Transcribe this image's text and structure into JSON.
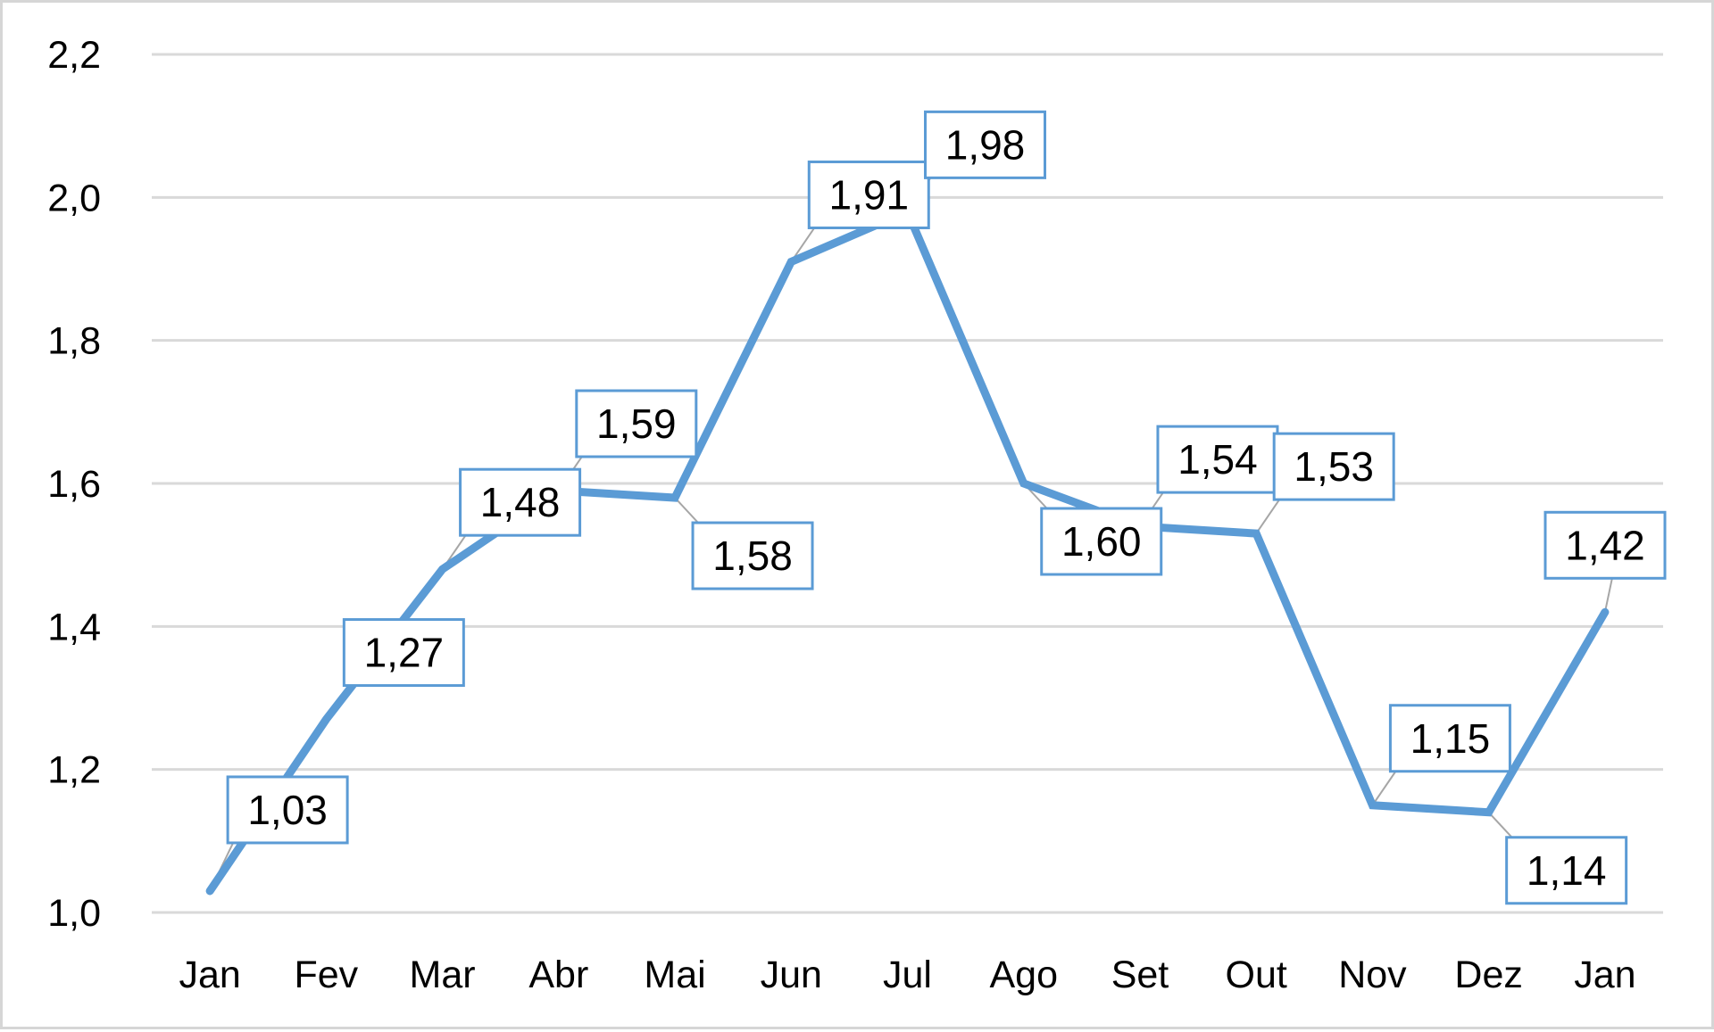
{
  "chart_data": {
    "type": "line",
    "title": "",
    "xlabel": "",
    "ylabel": "",
    "categories": [
      "Jan",
      "Fev",
      "Mar",
      "Abr",
      "Mai",
      "Jun",
      "Jul",
      "Ago",
      "Set",
      "Out",
      "Nov",
      "Dez",
      "Jan"
    ],
    "series": [
      {
        "values": [
          1.03,
          1.27,
          1.48,
          1.59,
          1.58,
          1.91,
          1.98,
          1.6,
          1.54,
          1.53,
          1.15,
          1.14,
          1.42
        ],
        "labels": [
          "1,03",
          "1,27",
          "1,48",
          "1,59",
          "1,58",
          "1,91",
          "1,98",
          "1,60",
          "1,54",
          "1,53",
          "1,15",
          "1,14",
          "1,42"
        ],
        "label_side": [
          "above",
          "above",
          "above",
          "above",
          "below",
          "above",
          "above",
          "below",
          "above",
          "above",
          "above",
          "below",
          "above"
        ]
      }
    ],
    "ylim": [
      1.0,
      2.2
    ],
    "yticks": [
      "1,0",
      "1,2",
      "1,4",
      "1,6",
      "1,8",
      "2,0",
      "2,2"
    ],
    "grid": true,
    "legend": "none",
    "colors": {
      "line": "#5b9bd5",
      "label_border": "#5b9bd5",
      "grid": "#d9d9d9",
      "leader": "#a6a6a6"
    }
  }
}
